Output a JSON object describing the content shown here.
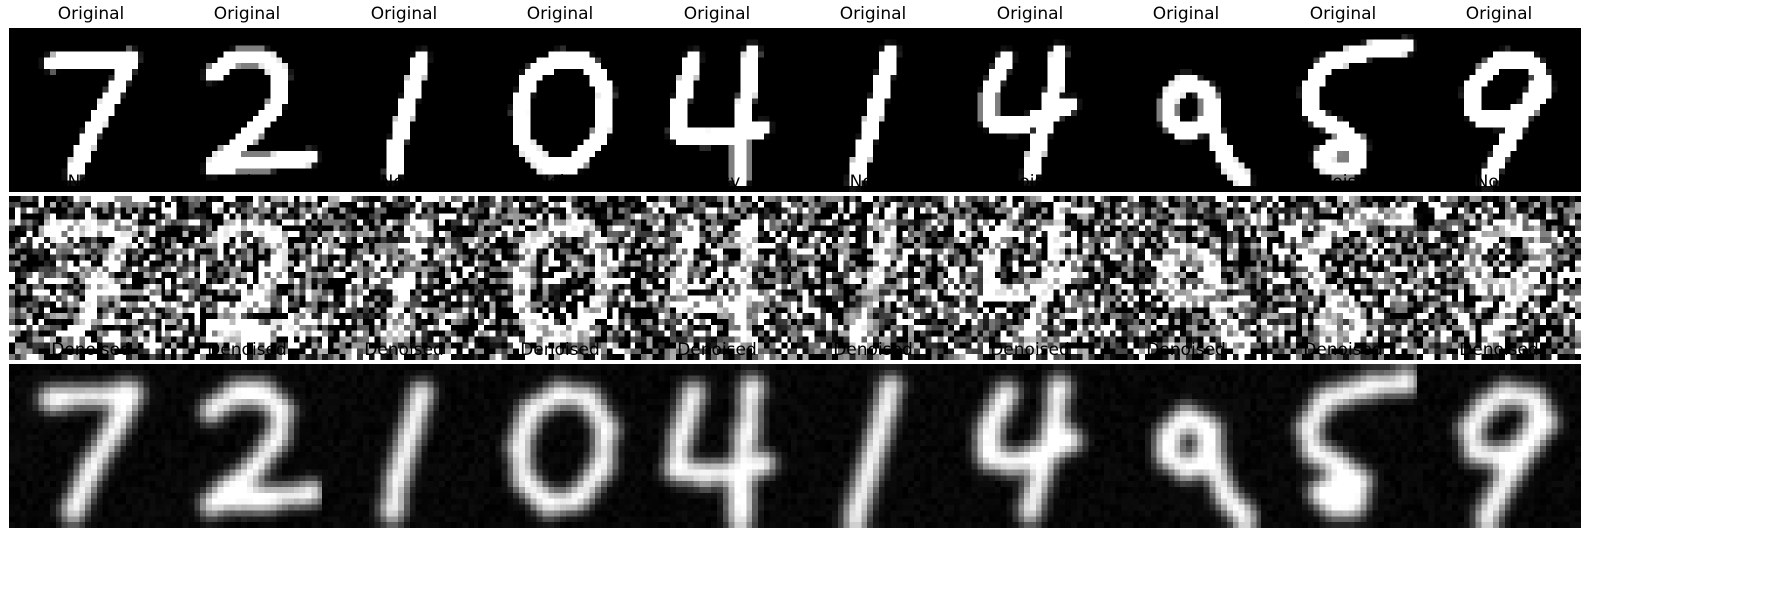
{
  "rows": [
    {
      "name": "original",
      "label": "Original",
      "style": "sharp"
    },
    {
      "name": "noisy",
      "label": "Noisy",
      "style": "noisy"
    },
    {
      "name": "denoised",
      "label": "Denoised",
      "style": "blur"
    }
  ],
  "digits": [
    {
      "digit": "7",
      "strokes": [
        [
          [
            7,
            6
          ],
          [
            21,
            5
          ]
        ],
        [
          [
            21,
            5
          ],
          [
            18,
            11
          ],
          [
            14,
            18
          ],
          [
            11,
            25
          ]
        ]
      ]
    },
    {
      "digit": "2",
      "strokes": [
        [
          [
            8,
            8
          ],
          [
            12,
            5
          ],
          [
            17,
            5
          ],
          [
            20,
            8
          ],
          [
            19,
            13
          ],
          [
            15,
            18
          ],
          [
            10,
            22
          ],
          [
            8,
            24
          ],
          [
            12,
            23
          ],
          [
            18,
            23
          ],
          [
            25,
            22
          ]
        ]
      ]
    },
    {
      "digit": "1",
      "strokes": [
        [
          [
            17,
            5
          ],
          [
            15,
            12
          ],
          [
            13,
            19
          ],
          [
            12,
            25
          ]
        ]
      ]
    },
    {
      "digit": "0",
      "strokes": [
        [
          [
            14,
            5
          ],
          [
            9,
            8
          ],
          [
            7,
            14
          ],
          [
            8,
            20
          ],
          [
            12,
            24
          ],
          [
            17,
            23
          ],
          [
            21,
            18
          ],
          [
            22,
            11
          ],
          [
            19,
            6
          ],
          [
            14,
            5
          ]
        ]
      ]
    },
    {
      "digit": "4",
      "strokes": [
        [
          [
            10,
            5
          ],
          [
            8,
            12
          ],
          [
            7,
            18
          ],
          [
            12,
            19
          ],
          [
            18,
            18
          ],
          [
            22,
            17
          ]
        ],
        [
          [
            20,
            4
          ],
          [
            19,
            12
          ],
          [
            18,
            19
          ],
          [
            18,
            26
          ]
        ]
      ]
    },
    {
      "digit": "1",
      "strokes": [
        [
          [
            17,
            4
          ],
          [
            15,
            12
          ],
          [
            13,
            19
          ],
          [
            11,
            26
          ]
        ]
      ]
    },
    {
      "digit": "4",
      "strokes": [
        [
          [
            10,
            5
          ],
          [
            7,
            11
          ],
          [
            7,
            16
          ],
          [
            11,
            17
          ],
          [
            17,
            15
          ],
          [
            21,
            13
          ]
        ],
        [
          [
            19,
            4
          ],
          [
            18,
            11
          ],
          [
            16,
            18
          ],
          [
            14,
            25
          ]
        ]
      ]
    },
    {
      "digit": "9",
      "strokes": [
        [
          [
            14,
            9
          ],
          [
            11,
            12
          ],
          [
            11,
            16
          ],
          [
            14,
            18
          ],
          [
            18,
            16
          ],
          [
            18,
            11
          ],
          [
            14,
            9
          ]
        ],
        [
          [
            18,
            12
          ],
          [
            19,
            18
          ],
          [
            21,
            23
          ],
          [
            24,
            26
          ]
        ]
      ]
    },
    {
      "digit": "5",
      "strokes": [
        [
          [
            11,
            6
          ],
          [
            18,
            4
          ],
          [
            25,
            3
          ]
        ],
        [
          [
            11,
            6
          ],
          [
            8,
            11
          ],
          [
            9,
            15
          ],
          [
            13,
            17
          ],
          [
            17,
            20
          ],
          [
            16,
            24
          ],
          [
            12,
            24
          ],
          [
            10,
            22
          ],
          [
            13,
            20
          ],
          [
            17,
            20
          ]
        ]
      ]
    },
    {
      "digit": "9",
      "strokes": [
        [
          [
            12,
            7
          ],
          [
            9,
            11
          ],
          [
            10,
            15
          ],
          [
            14,
            16
          ],
          [
            19,
            14
          ],
          [
            22,
            10
          ],
          [
            20,
            6
          ],
          [
            15,
            5
          ],
          [
            12,
            7
          ]
        ],
        [
          [
            21,
            9
          ],
          [
            17,
            17
          ],
          [
            14,
            22
          ],
          [
            12,
            26
          ]
        ]
      ]
    }
  ]
}
